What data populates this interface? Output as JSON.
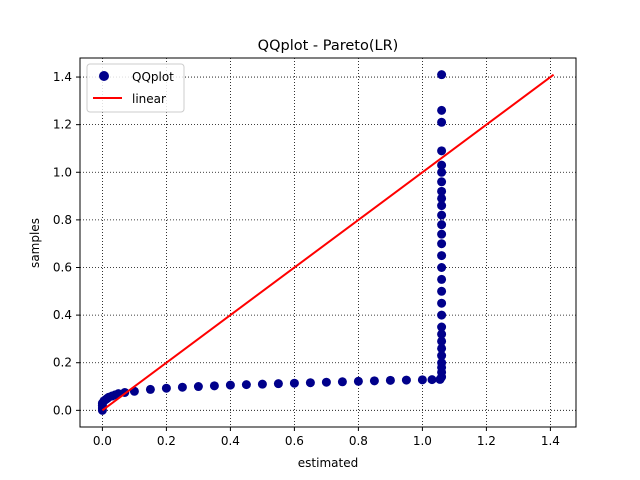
{
  "chart_data": {
    "type": "scatter",
    "title": "QQplot - Pareto(LR)",
    "xlabel": "estimated",
    "ylabel": "samples",
    "xlim": [
      -0.07,
      1.48
    ],
    "ylim": [
      -0.07,
      1.48
    ],
    "xticks": [
      0.0,
      0.2,
      0.4,
      0.6,
      0.8,
      1.0,
      1.2,
      1.4
    ],
    "yticks": [
      0.0,
      0.2,
      0.4,
      0.6,
      0.8,
      1.0,
      1.2,
      1.4
    ],
    "xtick_labels": [
      "0.0",
      "0.2",
      "0.4",
      "0.6",
      "0.8",
      "1.0",
      "1.2",
      "1.4"
    ],
    "ytick_labels": [
      "0.0",
      "0.2",
      "0.4",
      "0.6",
      "0.8",
      "1.0",
      "1.2",
      "1.4"
    ],
    "grid": true,
    "legend_position": "top-left",
    "series": [
      {
        "name": "QQplot",
        "kind": "points",
        "color": "#00008b",
        "x": [
          0.0,
          0.0,
          0.0,
          0.0,
          0.005,
          0.01,
          0.015,
          0.02,
          0.03,
          0.04,
          0.05,
          0.07,
          0.1,
          0.15,
          0.2,
          0.25,
          0.3,
          0.35,
          0.4,
          0.45,
          0.5,
          0.55,
          0.6,
          0.65,
          0.7,
          0.75,
          0.8,
          0.85,
          0.9,
          0.95,
          1.0,
          1.03,
          1.055,
          1.06,
          1.06,
          1.06,
          1.06,
          1.06,
          1.06,
          1.06,
          1.06,
          1.06,
          1.06,
          1.06,
          1.06,
          1.06,
          1.06,
          1.06,
          1.06,
          1.06,
          1.06,
          1.06,
          1.06,
          1.06,
          1.06,
          1.06,
          1.06,
          1.06,
          1.06,
          1.06,
          1.06,
          1.06
        ],
        "y": [
          0.0,
          0.01,
          0.02,
          0.03,
          0.04,
          0.045,
          0.05,
          0.055,
          0.06,
          0.065,
          0.07,
          0.075,
          0.08,
          0.088,
          0.093,
          0.097,
          0.1,
          0.103,
          0.106,
          0.108,
          0.11,
          0.112,
          0.114,
          0.116,
          0.118,
          0.12,
          0.122,
          0.124,
          0.126,
          0.127,
          0.128,
          0.129,
          0.13,
          0.14,
          0.16,
          0.18,
          0.2,
          0.23,
          0.26,
          0.29,
          0.32,
          0.35,
          0.4,
          0.45,
          0.5,
          0.55,
          0.6,
          0.65,
          0.7,
          0.74,
          0.78,
          0.82,
          0.86,
          0.89,
          0.92,
          0.96,
          1.0,
          1.03,
          1.09,
          1.21,
          1.26,
          1.41
        ]
      },
      {
        "name": "linear",
        "kind": "line",
        "color": "#ff0000",
        "x": [
          0.0,
          1.41
        ],
        "y": [
          0.0,
          1.41
        ]
      }
    ]
  }
}
